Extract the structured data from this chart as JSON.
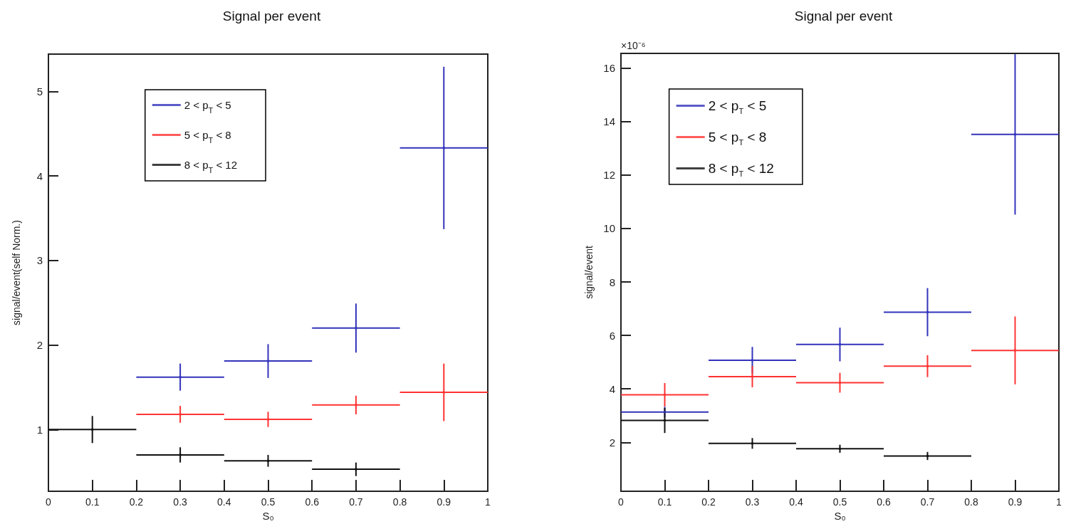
{
  "chart_data": [
    {
      "type": "scatter",
      "title": "Signal per event",
      "xlabel": "S₀",
      "ylabel": "signal/event(self Norm.)",
      "legend": "top left",
      "grid": false,
      "x": [
        0.1,
        0.3,
        0.5,
        0.7,
        0.9
      ],
      "xlim": [
        0,
        1
      ],
      "xticks": [
        0,
        0.1,
        0.2,
        0.3,
        0.4,
        0.5,
        0.6,
        0.7,
        0.8,
        0.9,
        1
      ],
      "ylim": [
        0.27,
        5.44
      ],
      "yticks": [
        1,
        2,
        3,
        4,
        5
      ],
      "series": [
        {
          "name": "2 < p$_{T}$ < 5",
          "color": "#3333bb",
          "values": [
            null,
            1.62,
            1.81,
            2.2,
            4.33
          ],
          "errors": [
            null,
            0.16,
            0.2,
            0.29,
            0.96
          ],
          "xerrors": [
            null,
            0.1,
            0.1,
            0.1,
            0.1
          ]
        },
        {
          "name": "5 < p$_{T}$ < 8",
          "color": "#ff3333",
          "values": [
            null,
            1.18,
            1.12,
            1.29,
            1.44
          ],
          "errors": [
            null,
            0.1,
            0.09,
            0.11,
            0.34
          ],
          "xerrors": [
            null,
            0.1,
            0.1,
            0.1,
            0.1
          ]
        },
        {
          "name": "8 < p$_{T}$ < 12",
          "color": "#111111",
          "values": [
            1.0,
            0.7,
            0.63,
            0.53,
            null
          ],
          "errors": [
            0.16,
            0.09,
            0.07,
            0.08,
            null
          ],
          "xerrors": [
            0.1,
            0.1,
            0.1,
            0.1,
            null
          ]
        }
      ]
    },
    {
      "type": "scatter",
      "title": "Signal per event",
      "xlabel": "S₀",
      "ylabel": "signal/event",
      "legend": "top left",
      "grid": false,
      "annotations": [
        "×10⁻⁶"
      ],
      "x": [
        0.1,
        0.3,
        0.5,
        0.7,
        0.9
      ],
      "xlim": [
        0,
        1
      ],
      "xticks": [
        0,
        0.1,
        0.2,
        0.3,
        0.4,
        0.5,
        0.6,
        0.7,
        0.8,
        0.9,
        1
      ],
      "ylim": [
        0.17,
        16.55
      ],
      "yticks": [
        2,
        4,
        6,
        8,
        10,
        12,
        14,
        16
      ],
      "series": [
        {
          "name": "2 < p$_{T}$ < 5",
          "color": "#3333bb",
          "values": [
            3.13,
            5.07,
            5.66,
            6.87,
            13.52
          ],
          "errors": [
            0.2,
            0.5,
            0.63,
            0.9,
            3.0
          ],
          "xerrors": [
            0.1,
            0.1,
            0.1,
            0.1,
            0.1
          ]
        },
        {
          "name": "5 < p$_{T}$ < 8",
          "color": "#ff3333",
          "values": [
            3.78,
            4.46,
            4.23,
            4.85,
            5.44
          ],
          "errors": [
            0.44,
            0.4,
            0.37,
            0.41,
            1.27
          ],
          "xerrors": [
            0.1,
            0.1,
            0.1,
            0.1,
            0.1
          ]
        },
        {
          "name": "8 < p$_{T}$ < 12",
          "color": "#111111",
          "values": [
            2.82,
            1.96,
            1.76,
            1.49,
            null
          ],
          "errors": [
            0.47,
            0.2,
            0.15,
            0.15,
            null
          ],
          "xerrors": [
            0.1,
            0.1,
            0.1,
            0.1,
            null
          ]
        }
      ]
    }
  ]
}
